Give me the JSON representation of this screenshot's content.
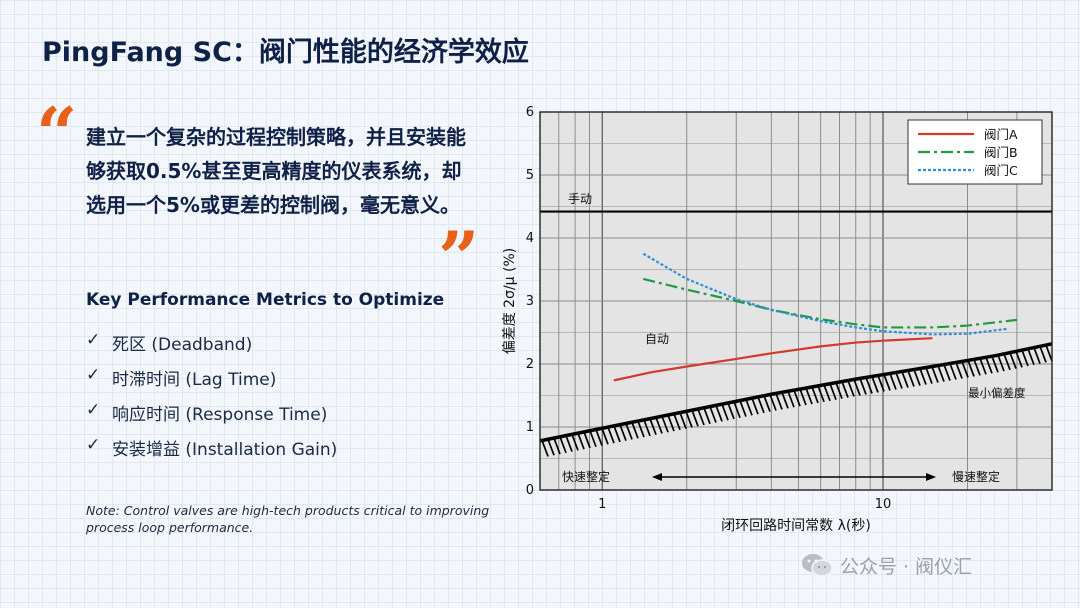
{
  "page": {
    "title": "PingFang SC：阀门性能的经济学效应",
    "quote": {
      "open_mark": "“",
      "close_mark": "”",
      "text": "建立一个复杂的过程控制策略，并且安装能够获取0.5%甚至更高精度的仪表系统，却选用一个5%或更差的控制阀，毫无意义。"
    },
    "metrics": {
      "heading": "Key Performance Metrics to Optimize",
      "check_glyph": "✓",
      "items": [
        {
          "label": "死区 (Deadband)"
        },
        {
          "label": "时滞时间 (Lag Time)"
        },
        {
          "label": "响应时间 (Response Time)"
        },
        {
          "label": "安装增益 (Installation Gain)"
        }
      ]
    },
    "note": "Note: Control valves are high-tech products critical to improving process loop performance.",
    "watermark": "公众号 · 阀仪汇"
  },
  "chart_data": {
    "type": "line",
    "x_scale": "log",
    "xlim": [
      0.6,
      40
    ],
    "ylim": [
      0,
      6
    ],
    "xlabel": "闭环回路时间常数 λ(秒)",
    "ylabel": "偏差度  2σ/μ (%)",
    "x_ticks": [
      1,
      10
    ],
    "y_ticks": [
      0,
      1,
      2,
      3,
      4,
      5,
      6
    ],
    "grid": true,
    "legend_position": "top-right",
    "series": [
      {
        "name": "阀门A",
        "color": "#d23a2e",
        "dash": "solid",
        "x": [
          1.1,
          1.5,
          2,
          3,
          4,
          6,
          8,
          10,
          15
        ],
        "y": [
          1.74,
          1.87,
          1.96,
          2.08,
          2.17,
          2.28,
          2.34,
          2.37,
          2.41
        ]
      },
      {
        "name": "阀门B",
        "color": "#1f9b3e",
        "dash": "dashdot",
        "x": [
          1.4,
          2,
          3,
          4,
          6,
          8,
          10,
          15,
          20,
          30
        ],
        "y": [
          3.35,
          3.18,
          3.0,
          2.86,
          2.71,
          2.63,
          2.58,
          2.58,
          2.61,
          2.7
        ]
      },
      {
        "name": "阀门C",
        "color": "#2f8fd2",
        "dash": "dotted",
        "x": [
          1.4,
          2,
          3,
          4,
          6,
          8,
          10,
          15,
          20,
          28
        ],
        "y": [
          3.75,
          3.35,
          3.03,
          2.86,
          2.68,
          2.58,
          2.52,
          2.47,
          2.48,
          2.56
        ]
      }
    ],
    "boundaries": {
      "manual_line_y": 4.42,
      "min_variability": {
        "x": [
          0.6,
          1,
          2,
          4,
          8,
          15,
          25,
          40
        ],
        "y": [
          0.78,
          0.98,
          1.25,
          1.52,
          1.76,
          1.96,
          2.13,
          2.32
        ]
      }
    },
    "annotations": {
      "manual": "手动",
      "auto": "自动",
      "min_variability": "最小偏差度",
      "fast_tuning": "快速整定",
      "slow_tuning": "慢速整定"
    }
  }
}
